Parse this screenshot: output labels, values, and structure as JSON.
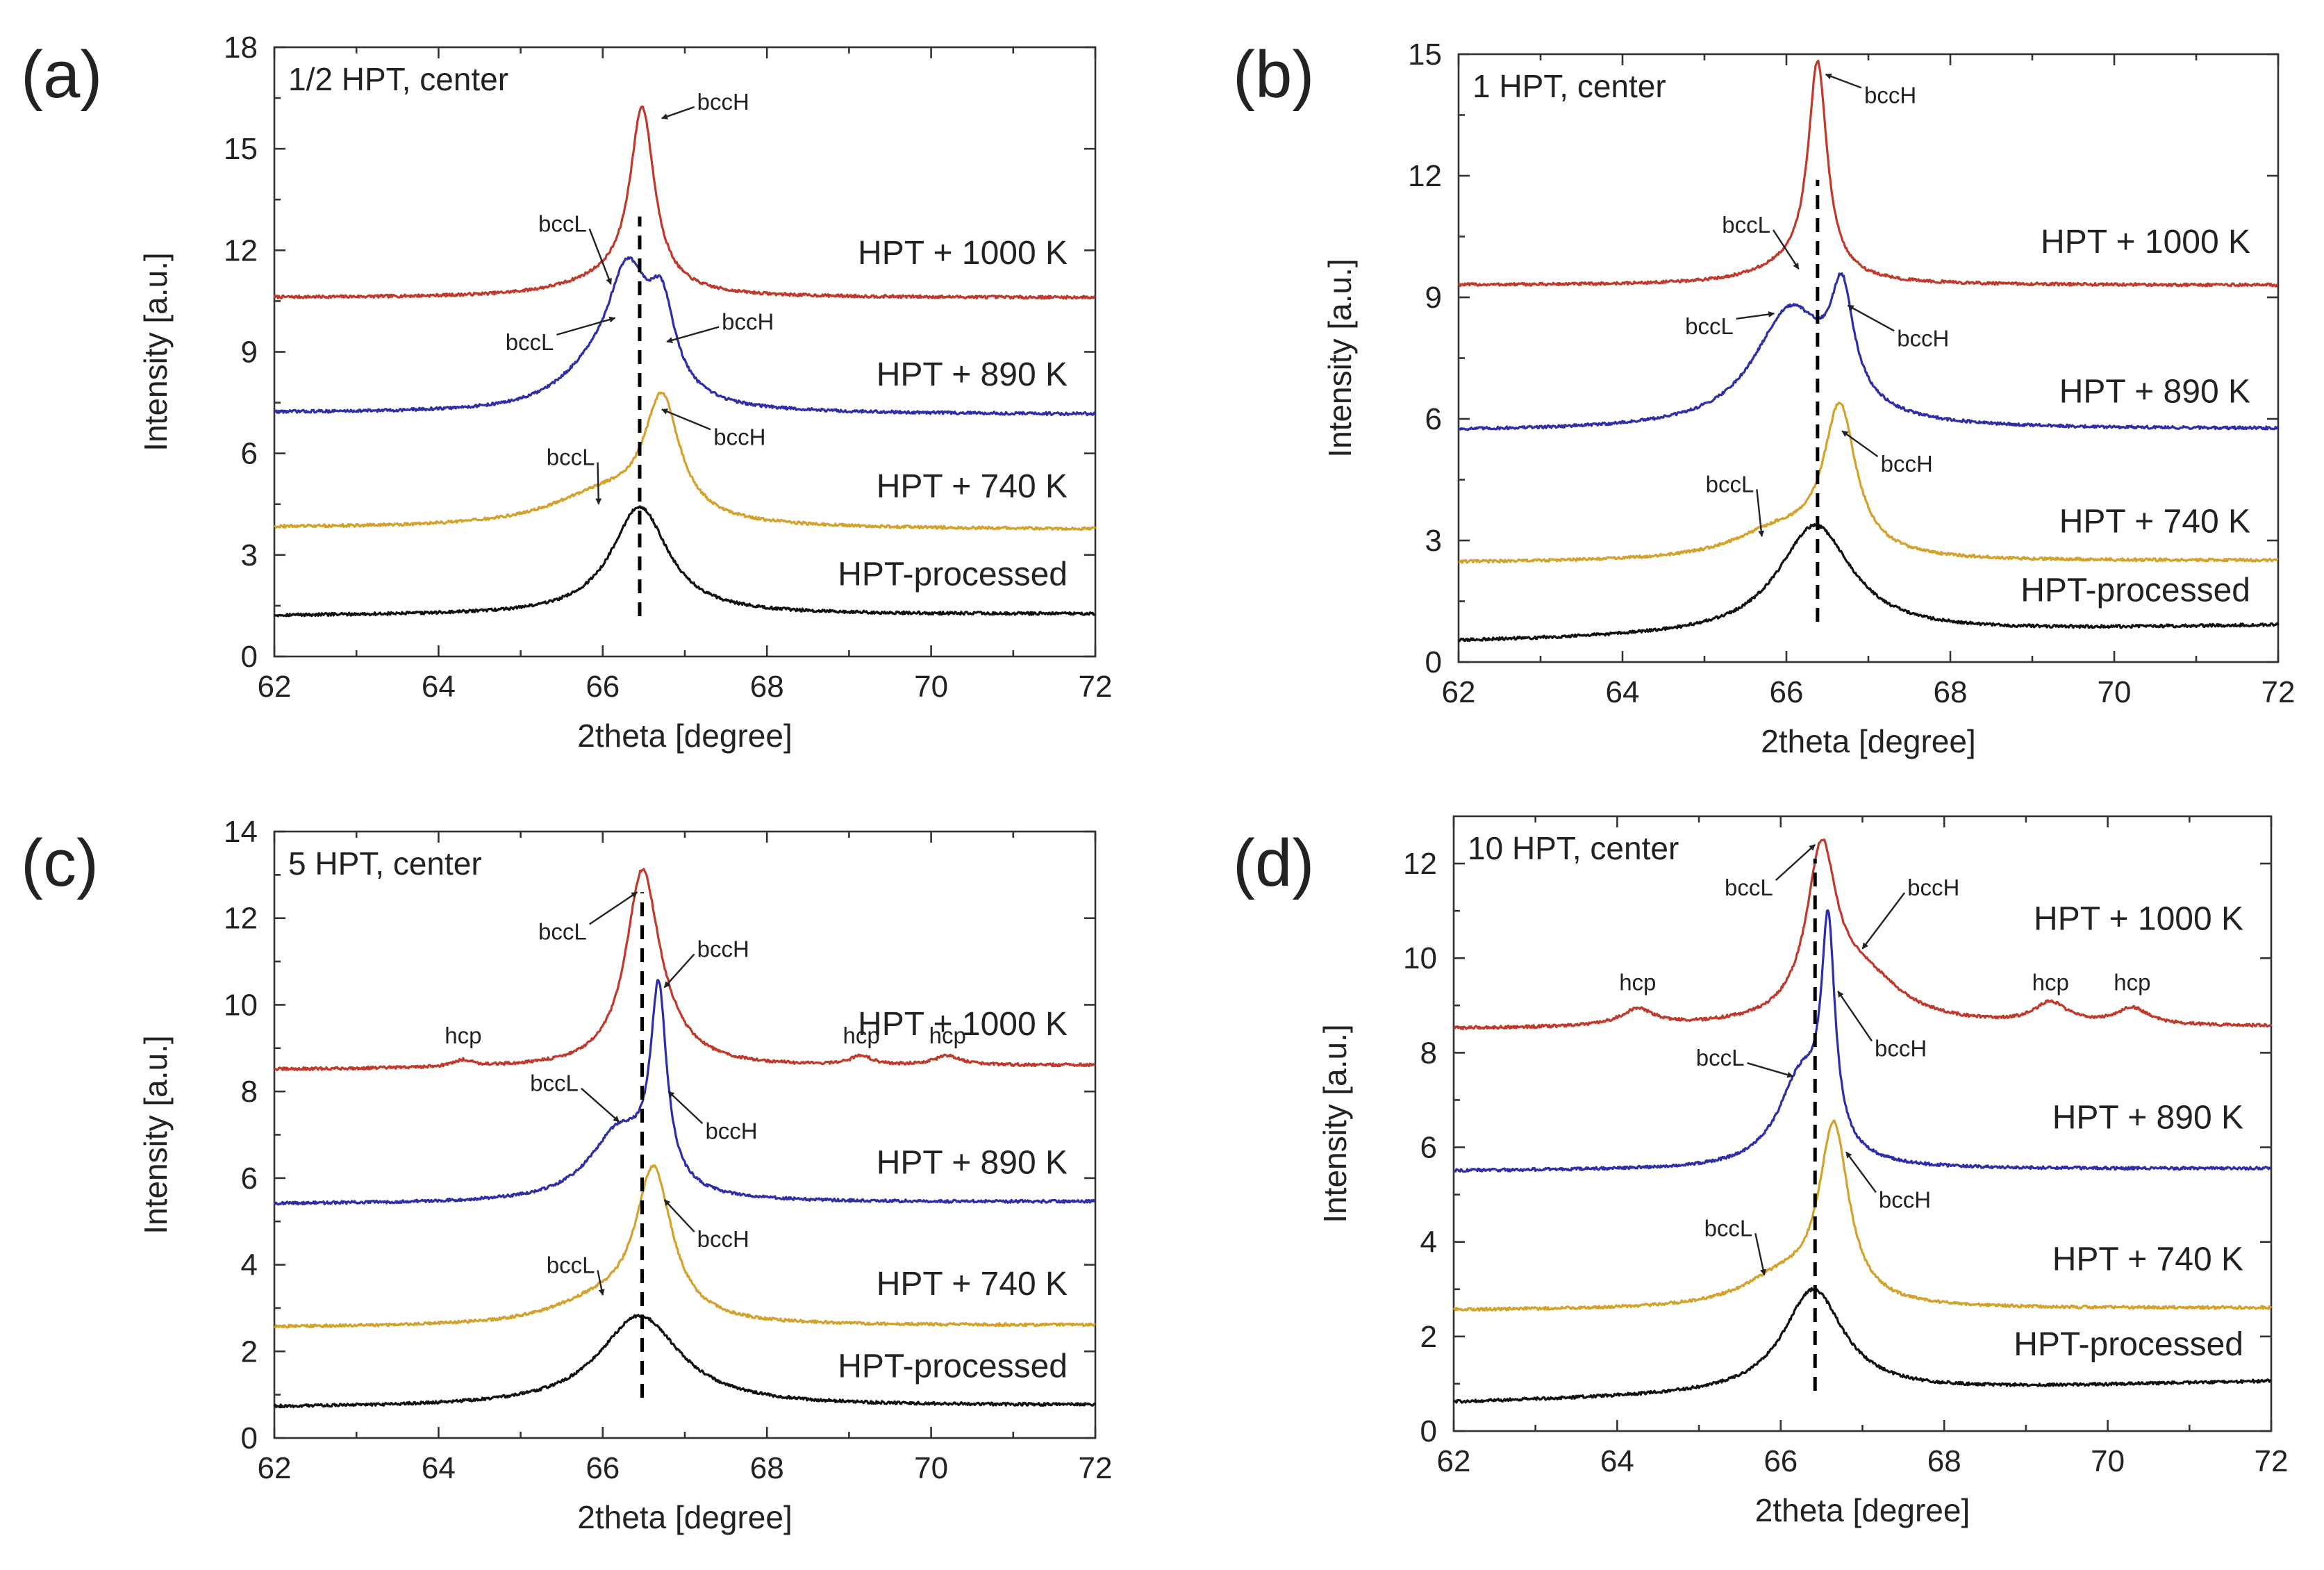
{
  "chart_data": [
    {
      "type": "line",
      "panel_label": "(a)",
      "condition": "1/2 HPT, center",
      "xlabel": "2theta [degree]",
      "ylabel": "Intensity [a.u.]",
      "xlim": [
        62,
        72
      ],
      "ylim": [
        0,
        18
      ],
      "xticks": [
        62,
        64,
        66,
        68,
        70,
        72
      ],
      "yticks": [
        0,
        3,
        6,
        9,
        12,
        15,
        18
      ],
      "ref_x": 66.45,
      "ref_ymax": 13.0,
      "series": [
        {
          "name": "HPT + 1000 K",
          "color": "#c0392b",
          "baseline": 10.6,
          "tail": 10.6,
          "label_y": 11.6,
          "peaks": [
            {
              "x": 66.48,
              "h": 5.3,
              "w": 0.18
            },
            {
              "x": 66.1,
              "h": 0.45,
              "w": 0.7
            }
          ]
        },
        {
          "name": "HPT + 890 K",
          "color": "#2d2ea8",
          "baseline": 7.2,
          "tail": 7.15,
          "label_y": 8.0,
          "peaks": [
            {
              "x": 66.3,
              "h": 3.8,
              "w": 0.32
            },
            {
              "x": 66.72,
              "h": 2.4,
              "w": 0.2
            },
            {
              "x": 65.8,
              "h": 0.7,
              "w": 0.5
            }
          ]
        },
        {
          "name": "HPT + 740 K",
          "color": "#d4a22c",
          "baseline": 3.8,
          "tail": 3.75,
          "label_y": 4.7,
          "peaks": [
            {
              "x": 66.72,
              "h": 3.5,
              "w": 0.26
            },
            {
              "x": 66.0,
              "h": 0.95,
              "w": 0.8
            }
          ]
        },
        {
          "name": "HPT-processed",
          "color": "#111111",
          "baseline": 1.2,
          "tail": 1.25,
          "label_y": 2.1,
          "peaks": [
            {
              "x": 66.45,
              "h": 3.2,
              "w": 0.42
            }
          ]
        }
      ],
      "annotations": [
        {
          "text": "bccH",
          "x": 66.72,
          "y": 15.9,
          "tx": 67.2,
          "ty": 16.4
        },
        {
          "text": "bccL",
          "x": 66.1,
          "y": 11.0,
          "tx": 65.5,
          "ty": 12.8
        },
        {
          "text": "bccL",
          "x": 66.15,
          "y": 10.0,
          "tx": 65.1,
          "ty": 9.3
        },
        {
          "text": "bccH",
          "x": 66.78,
          "y": 9.3,
          "tx": 67.5,
          "ty": 9.9
        },
        {
          "text": "bccL",
          "x": 65.95,
          "y": 4.5,
          "tx": 65.6,
          "ty": 5.9
        },
        {
          "text": "bccH",
          "x": 66.72,
          "y": 7.3,
          "tx": 67.4,
          "ty": 6.5
        }
      ]
    },
    {
      "type": "line",
      "panel_label": "(b)",
      "condition": "1 HPT, center",
      "xlabel": "2theta [degree]",
      "ylabel": "Intensity [a.u.]",
      "xlim": [
        62,
        72
      ],
      "ylim": [
        0,
        15
      ],
      "xticks": [
        62,
        64,
        66,
        68,
        70,
        72
      ],
      "yticks": [
        0,
        3,
        6,
        9,
        12,
        15
      ],
      "ref_x": 66.38,
      "ref_ymax": 11.9,
      "series": [
        {
          "name": "HPT + 1000 K",
          "color": "#c0392b",
          "baseline": 9.3,
          "tail": 9.3,
          "label_y": 10.1,
          "peaks": [
            {
              "x": 66.38,
              "h": 5.2,
              "w": 0.14
            },
            {
              "x": 66.1,
              "h": 0.4,
              "w": 0.6
            }
          ]
        },
        {
          "name": "HPT + 890 K",
          "color": "#2d2ea8",
          "baseline": 5.7,
          "tail": 5.75,
          "label_y": 6.4,
          "peaks": [
            {
              "x": 66.05,
              "h": 2.9,
              "w": 0.55
            },
            {
              "x": 66.68,
              "h": 2.6,
              "w": 0.17
            }
          ]
        },
        {
          "name": "HPT + 740 K",
          "color": "#d4a22c",
          "baseline": 2.45,
          "tail": 2.5,
          "label_y": 3.2,
          "peaks": [
            {
              "x": 66.65,
              "h": 3.6,
              "w": 0.24
            },
            {
              "x": 65.9,
              "h": 0.7,
              "w": 0.7
            }
          ]
        },
        {
          "name": "HPT-processed",
          "color": "#111111",
          "baseline": 0.5,
          "tail": 0.9,
          "label_y": 1.5,
          "peaks": [
            {
              "x": 66.35,
              "h": 2.7,
              "w": 0.55
            }
          ]
        }
      ],
      "annotations": [
        {
          "text": "bccH",
          "x": 66.48,
          "y": 14.5,
          "tx": 67.0,
          "ty": 14.0
        },
        {
          "text": "bccL",
          "x": 66.15,
          "y": 9.7,
          "tx": 65.5,
          "ty": 10.8
        },
        {
          "text": "bccL",
          "x": 65.85,
          "y": 8.6,
          "tx": 65.05,
          "ty": 8.3
        },
        {
          "text": "bccH",
          "x": 66.75,
          "y": 8.8,
          "tx": 67.4,
          "ty": 8.0
        },
        {
          "text": "bccL",
          "x": 65.7,
          "y": 3.1,
          "tx": 65.3,
          "ty": 4.4
        },
        {
          "text": "bccH",
          "x": 66.68,
          "y": 5.7,
          "tx": 67.2,
          "ty": 4.9
        }
      ]
    },
    {
      "type": "line",
      "panel_label": "(c)",
      "condition": "5 HPT, center",
      "xlabel": "2theta [degree]",
      "ylabel": "Intensity [a.u.]",
      "xlim": [
        62,
        72
      ],
      "ylim": [
        0,
        14
      ],
      "xticks": [
        62,
        64,
        66,
        68,
        70,
        72
      ],
      "yticks": [
        0,
        2,
        4,
        6,
        8,
        10,
        12,
        14
      ],
      "ref_x": 66.48,
      "ref_ymax": 12.6,
      "series": [
        {
          "name": "HPT + 1000 K",
          "color": "#c0392b",
          "baseline": 8.5,
          "tail": 8.6,
          "label_y": 9.3,
          "peaks": [
            {
              "x": 66.48,
              "h": 4.2,
              "w": 0.24
            },
            {
              "x": 66.7,
              "h": 0.5,
              "w": 0.4
            },
            {
              "x": 64.3,
              "h": 0.15,
              "w": 0.15
            },
            {
              "x": 69.15,
              "h": 0.22,
              "w": 0.15
            },
            {
              "x": 70.2,
              "h": 0.22,
              "w": 0.2
            }
          ]
        },
        {
          "name": "HPT + 890 K",
          "color": "#2d2ea8",
          "baseline": 5.4,
          "tail": 5.45,
          "label_y": 6.1,
          "peaks": [
            {
              "x": 66.68,
              "h": 4.4,
              "w": 0.12
            },
            {
              "x": 66.2,
              "h": 1.6,
              "w": 0.45
            }
          ]
        },
        {
          "name": "HPT + 740 K",
          "color": "#d4a22c",
          "baseline": 2.55,
          "tail": 2.6,
          "label_y": 3.3,
          "peaks": [
            {
              "x": 66.62,
              "h": 3.45,
              "w": 0.27
            },
            {
              "x": 65.95,
              "h": 0.5,
              "w": 0.7
            }
          ]
        },
        {
          "name": "HPT-processed",
          "color": "#111111",
          "baseline": 0.7,
          "tail": 0.75,
          "label_y": 1.4,
          "peaks": [
            {
              "x": 66.45,
              "h": 2.1,
              "w": 0.6
            }
          ]
        }
      ],
      "annotations": [
        {
          "text": "bccL",
          "x": 66.42,
          "y": 12.6,
          "tx": 65.5,
          "ty": 11.7
        },
        {
          "text": "bccH",
          "x": 66.75,
          "y": 10.4,
          "tx": 67.2,
          "ty": 11.3
        },
        {
          "text": "hcp",
          "x": 64.3,
          "y": 8.7,
          "tx": 64.3,
          "ty": 9.3
        },
        {
          "text": "hcp",
          "x": 69.15,
          "y": 8.85,
          "tx": 69.15,
          "ty": 9.3
        },
        {
          "text": "hcp",
          "x": 70.2,
          "y": 8.85,
          "tx": 70.2,
          "ty": 9.3
        },
        {
          "text": "bccL",
          "x": 66.2,
          "y": 7.3,
          "tx": 65.4,
          "ty": 8.2
        },
        {
          "text": "bccH",
          "x": 66.8,
          "y": 8.0,
          "tx": 67.3,
          "ty": 7.1
        },
        {
          "text": "bccL",
          "x": 66.0,
          "y": 3.3,
          "tx": 65.6,
          "ty": 4.0
        },
        {
          "text": "bccH",
          "x": 66.75,
          "y": 5.5,
          "tx": 67.2,
          "ty": 4.6
        }
      ]
    },
    {
      "type": "line",
      "panel_label": "(d)",
      "condition": "10 HPT, center",
      "xlabel": "2theta [degree]",
      "ylabel": "Intensity [a.u.]",
      "xlim": [
        62,
        72
      ],
      "ylim": [
        0,
        13
      ],
      "xticks": [
        62,
        64,
        66,
        68,
        70,
        72
      ],
      "yticks": [
        0,
        2,
        4,
        6,
        8,
        10,
        12
      ],
      "ref_x": 66.42,
      "ref_ymax": 12.1,
      "series": [
        {
          "name": "HPT + 1000 K",
          "color": "#c0392b",
          "baseline": 8.5,
          "tail": 8.55,
          "label_y": 10.6,
          "peaks": [
            {
              "x": 66.5,
              "h": 3.4,
              "w": 0.22
            },
            {
              "x": 67.0,
              "h": 1.0,
              "w": 0.6
            },
            {
              "x": 64.25,
              "h": 0.35,
              "w": 0.25
            },
            {
              "x": 69.3,
              "h": 0.45,
              "w": 0.25
            },
            {
              "x": 70.3,
              "h": 0.35,
              "w": 0.25
            }
          ]
        },
        {
          "name": "HPT + 890 K",
          "color": "#2d2ea8",
          "baseline": 5.5,
          "tail": 5.55,
          "label_y": 6.4,
          "peaks": [
            {
              "x": 66.58,
              "h": 4.5,
              "w": 0.1
            },
            {
              "x": 66.25,
              "h": 1.9,
              "w": 0.35
            }
          ]
        },
        {
          "name": "HPT + 740 K",
          "color": "#d4a22c",
          "baseline": 2.55,
          "tail": 2.6,
          "label_y": 3.4,
          "peaks": [
            {
              "x": 66.65,
              "h": 3.7,
              "w": 0.22
            },
            {
              "x": 66.0,
              "h": 0.6,
              "w": 0.6
            }
          ]
        },
        {
          "name": "HPT-processed",
          "color": "#111111",
          "baseline": 0.6,
          "tail": 1.05,
          "label_y": 1.6,
          "peaks": [
            {
              "x": 66.4,
              "h": 2.2,
              "w": 0.45
            }
          ]
        }
      ],
      "annotations": [
        {
          "text": "bccL",
          "x": 66.42,
          "y": 12.4,
          "tx": 65.6,
          "ty": 11.5
        },
        {
          "text": "bccH",
          "x": 67.0,
          "y": 10.2,
          "tx": 67.6,
          "ty": 11.5
        },
        {
          "text": "hcp",
          "x": 64.25,
          "y": 8.9,
          "tx": 64.25,
          "ty": 9.5
        },
        {
          "text": "hcp",
          "x": 69.3,
          "y": 9.0,
          "tx": 69.3,
          "ty": 9.5
        },
        {
          "text": "hcp",
          "x": 70.3,
          "y": 9.0,
          "tx": 70.3,
          "ty": 9.5
        },
        {
          "text": "bccH",
          "x": 66.7,
          "y": 9.3,
          "tx": 67.2,
          "ty": 8.1
        },
        {
          "text": "bccL",
          "x": 66.15,
          "y": 7.5,
          "tx": 65.25,
          "ty": 7.9
        },
        {
          "text": "bccH",
          "x": 66.8,
          "y": 5.9,
          "tx": 67.25,
          "ty": 4.9
        },
        {
          "text": "bccL",
          "x": 65.8,
          "y": 3.3,
          "tx": 65.35,
          "ty": 4.3
        }
      ]
    }
  ]
}
